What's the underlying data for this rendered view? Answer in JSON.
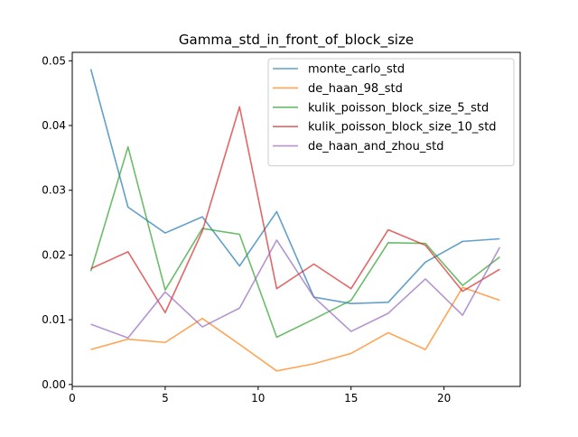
{
  "chart_data": {
    "type": "line",
    "title": "Gamma_std_in_front_of_block_size",
    "xlabel": "",
    "ylabel": "",
    "xlim": [
      0,
      24.1
    ],
    "ylim": [
      -0.0003,
      0.0513
    ],
    "xticks": [
      0,
      5,
      10,
      15,
      20
    ],
    "yticks": [
      0.0,
      0.01,
      0.02,
      0.03,
      0.04,
      0.05
    ],
    "ytick_labels": [
      "0.00",
      "0.01",
      "0.02",
      "0.03",
      "0.04",
      "0.05"
    ],
    "grid": false,
    "legend_position": "top-right",
    "x": [
      1,
      3,
      5,
      7,
      9,
      11,
      13,
      15,
      17,
      19,
      21,
      23
    ],
    "series": [
      {
        "name": "monte_carlo_std",
        "color": "#1f77b4",
        "values": [
          0.0487,
          0.0274,
          0.0234,
          0.0259,
          0.0183,
          0.0267,
          0.0135,
          0.0125,
          0.0127,
          0.0189,
          0.0221,
          0.0225
        ]
      },
      {
        "name": "de_haan_98_std",
        "color": "#ff7f0e",
        "values": [
          0.0054,
          0.007,
          0.0065,
          0.0102,
          0.0062,
          0.0021,
          0.0032,
          0.0048,
          0.008,
          0.0054,
          0.015,
          0.013
        ]
      },
      {
        "name": "kulik_poisson_block_size_5_std",
        "color": "#2ca02c",
        "values": [
          0.0175,
          0.0367,
          0.0146,
          0.0241,
          0.0232,
          0.0073,
          0.0101,
          0.013,
          0.0219,
          0.0218,
          0.0153,
          0.0197
        ]
      },
      {
        "name": "kulik_poisson_block_size_10_std",
        "color": "#d62728",
        "values": [
          0.0179,
          0.0205,
          0.0111,
          0.0237,
          0.0429,
          0.0148,
          0.0186,
          0.0148,
          0.0239,
          0.0215,
          0.0144,
          0.0178
        ]
      },
      {
        "name": "de_haan_and_zhou_std",
        "color": "#9467bd",
        "values": [
          0.0093,
          0.0072,
          0.0143,
          0.0089,
          0.0118,
          0.0223,
          0.0135,
          0.0082,
          0.011,
          0.0163,
          0.0107,
          0.0212
        ]
      }
    ]
  }
}
